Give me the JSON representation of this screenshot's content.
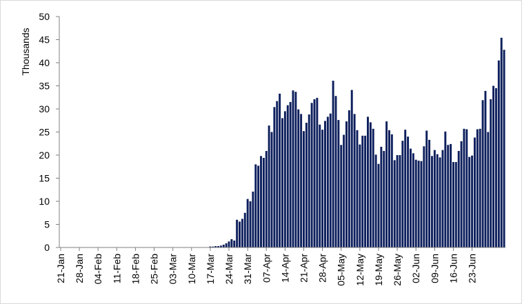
{
  "chart_data": {
    "type": "bar",
    "title": "",
    "ylabel": "Thousands",
    "xlabel": "",
    "ylim": [
      0,
      50
    ],
    "yticks": [
      0,
      5,
      10,
      15,
      20,
      25,
      30,
      35,
      40,
      45,
      50
    ],
    "grid": false,
    "bar_color": "#0d1f5c",
    "x_tick_labels": [
      "21-Jan",
      "28-Jan",
      "04-Feb",
      "11-Feb",
      "18-Feb",
      "25-Feb",
      "03-Mar",
      "10-Mar",
      "17-Mar",
      "24-Mar",
      "31-Mar",
      "07-Apr",
      "14-Apr",
      "21-Apr",
      "28-Apr",
      "05-May",
      "12-May",
      "19-May",
      "26-May",
      "02-Jun",
      "09-Jun",
      "16-Jun",
      "23-Jun"
    ],
    "start_date": "21-Jan",
    "daily_values": [
      0,
      0,
      0,
      0,
      0,
      0,
      0,
      0,
      0,
      0,
      0,
      0,
      0,
      0,
      0,
      0,
      0,
      0,
      0,
      0,
      0,
      0,
      0,
      0,
      0,
      0,
      0,
      0,
      0,
      0,
      0,
      0,
      0,
      0,
      0,
      0,
      0,
      0,
      0,
      0,
      0,
      0,
      0,
      0,
      0,
      0,
      0,
      0,
      0,
      0,
      0,
      0,
      0,
      0,
      0,
      0,
      0.2,
      0.2,
      0.3,
      0.3,
      0.4,
      0.6,
      0.9,
      1.3,
      1.8,
      1.5,
      6.0,
      5.6,
      6.2,
      7.5,
      10.5,
      10.0,
      12.1,
      18.0,
      17.7,
      19.8,
      19.4,
      20.9,
      26.4,
      25.0,
      30.4,
      31.7,
      33.3,
      28.0,
      29.5,
      30.8,
      31.5,
      34.0,
      33.7,
      29.9,
      28.9,
      25.2,
      27.0,
      28.8,
      31.3,
      32.1,
      32.4,
      26.6,
      25.5,
      27.4,
      28.3,
      29.0,
      36.1,
      32.8,
      27.6,
      22.2,
      24.4,
      27.3,
      29.7,
      34.1,
      28.9,
      25.4,
      22.3,
      24.2,
      24.2,
      28.3,
      27.1,
      25.7,
      20.1,
      18.1,
      21.8,
      20.9,
      27.3,
      25.4,
      24.5,
      18.9,
      20.0,
      20.0,
      23.1,
      25.5,
      24.0,
      21.4,
      20.4,
      19.0,
      18.8,
      18.7,
      21.9,
      25.3,
      23.3,
      19.8,
      21.1,
      20.2,
      19.5,
      21.1,
      25.1,
      22.2,
      22.4,
      18.5,
      18.5,
      20.9,
      23.0,
      25.7,
      25.6,
      19.6,
      19.9,
      23.8,
      25.6,
      25.7,
      31.9,
      33.9,
      25.0,
      32.1,
      35.0,
      34.5,
      40.5,
      45.4,
      42.8
    ]
  }
}
